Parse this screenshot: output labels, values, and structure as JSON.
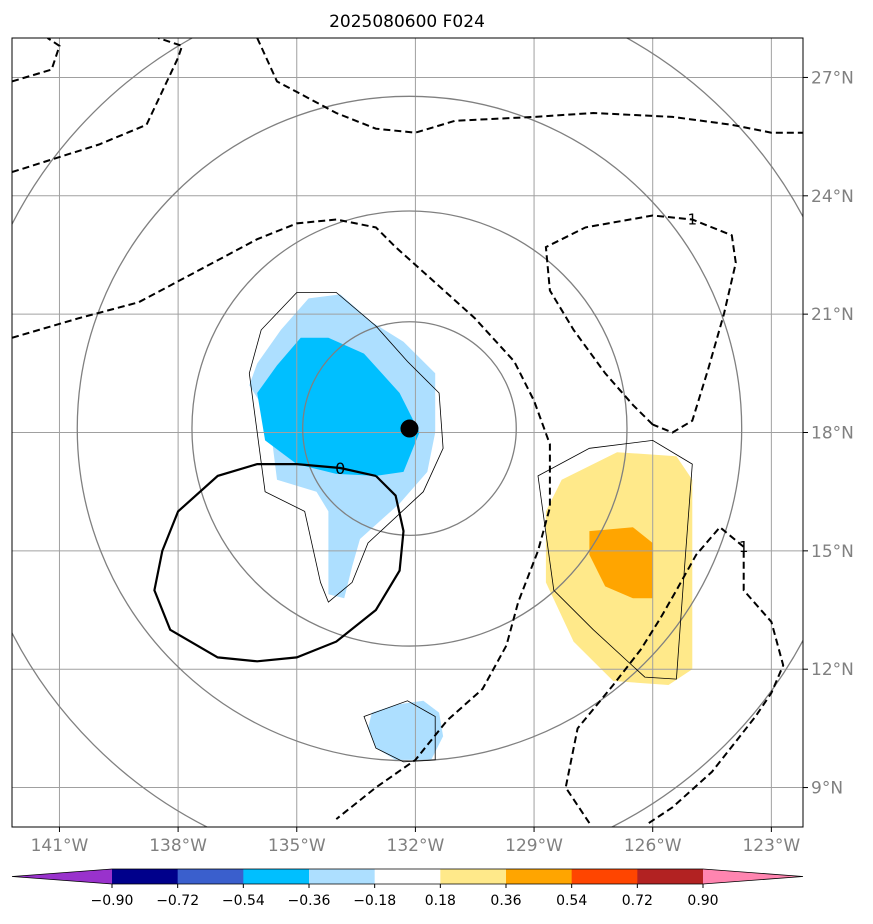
{
  "chart_data": {
    "type": "map",
    "title": "2025080600 F024",
    "projection": "PlateCarree",
    "lon_range": [
      -142.2,
      -122.2
    ],
    "lat_range": [
      8,
      28
    ],
    "lon_ticks": [
      -141,
      -138,
      -135,
      -132,
      -129,
      -126,
      -123
    ],
    "lon_tick_labels": [
      "141°W",
      "138°W",
      "135°W",
      "132°W",
      "129°W",
      "126°W",
      "123°W"
    ],
    "lat_ticks": [
      9,
      12,
      15,
      18,
      21,
      24,
      27
    ],
    "lat_tick_labels": [
      "9°N",
      "12°N",
      "15°N",
      "18°N",
      "21°N",
      "24°N",
      "27°N"
    ],
    "grid": true,
    "center_marker": {
      "lon": -132.15,
      "lat": 18.1,
      "color": "#000000"
    },
    "colorbar": {
      "orientation": "horizontal",
      "extend": "both",
      "levels": [
        -0.9,
        -0.72,
        -0.54,
        -0.36,
        -0.18,
        0.18,
        0.36,
        0.54,
        0.72,
        0.9
      ],
      "tick_labels": [
        "−0.90",
        "−0.72",
        "−0.54",
        "−0.36",
        "−0.18",
        "0.18",
        "0.36",
        "0.54",
        "0.72",
        "0.90"
      ],
      "colors": [
        "#9932CC",
        "#00008B",
        "#3A5FCD",
        "#00BFFF",
        "#ADDFFF",
        "#FFFFFF",
        "#FFE98A",
        "#FFA500",
        "#FF4500",
        "#B22222",
        "#FF85B0"
      ]
    },
    "shaded_regions": [
      {
        "level": "-0.36 to -0.18",
        "color": "#ADDFFF",
        "polygon": [
          [
            -136.0,
            19.75
          ],
          [
            -135.4,
            20.6
          ],
          [
            -134.7,
            21.4
          ],
          [
            -133.9,
            21.5
          ],
          [
            -133.1,
            20.8
          ],
          [
            -132.3,
            20.3
          ],
          [
            -131.5,
            19.5
          ],
          [
            -131.5,
            18.0
          ],
          [
            -131.7,
            17.0
          ],
          [
            -132.4,
            16.2
          ],
          [
            -133.4,
            15.3
          ],
          [
            -133.6,
            14.6
          ],
          [
            -133.8,
            13.8
          ],
          [
            -134.2,
            13.9
          ],
          [
            -134.2,
            16.0
          ],
          [
            -134.5,
            16.5
          ],
          [
            -135.5,
            16.8
          ],
          [
            -135.7,
            18.4
          ],
          [
            -136.2,
            19.2
          ],
          [
            -136.0,
            19.75
          ]
        ]
      },
      {
        "level": "-0.54 to -0.36",
        "color": "#00BFFF",
        "polygon": [
          [
            -134.9,
            20.4
          ],
          [
            -134.2,
            20.4
          ],
          [
            -133.3,
            20.0
          ],
          [
            -132.4,
            19.0
          ],
          [
            -131.9,
            18.0
          ],
          [
            -132.3,
            17.0
          ],
          [
            -133.0,
            16.9
          ],
          [
            -134.0,
            16.95
          ],
          [
            -135.0,
            17.2
          ],
          [
            -135.8,
            17.8
          ],
          [
            -136.0,
            19.0
          ],
          [
            -135.5,
            19.7
          ],
          [
            -134.9,
            20.4
          ]
        ]
      },
      {
        "level": "-0.36 to -0.18",
        "color": "#ADDFFF",
        "polygon": [
          [
            -133.2,
            10.5
          ],
          [
            -133.0,
            10.0
          ],
          [
            -132.5,
            9.7
          ],
          [
            -131.6,
            9.7
          ],
          [
            -131.3,
            10.3
          ],
          [
            -131.4,
            10.9
          ],
          [
            -131.8,
            11.2
          ],
          [
            -132.5,
            11.1
          ],
          [
            -133.1,
            10.9
          ],
          [
            -133.2,
            10.5
          ]
        ]
      },
      {
        "level": "0.18 to 0.36",
        "color": "#FFE98A",
        "polygon": [
          [
            -128.7,
            16.0
          ],
          [
            -128.3,
            16.8
          ],
          [
            -126.9,
            17.5
          ],
          [
            -125.4,
            17.4
          ],
          [
            -125.0,
            16.8
          ],
          [
            -125.0,
            15.0
          ],
          [
            -125.0,
            12.0
          ],
          [
            -125.6,
            11.6
          ],
          [
            -127.0,
            11.7
          ],
          [
            -128.0,
            12.7
          ],
          [
            -128.7,
            14.2
          ],
          [
            -128.7,
            16.0
          ]
        ]
      },
      {
        "level": "0.36 to 0.54",
        "color": "#FFA500",
        "polygon": [
          [
            -127.6,
            15.5
          ],
          [
            -126.5,
            15.6
          ],
          [
            -126.0,
            15.2
          ],
          [
            -126.0,
            13.8
          ],
          [
            -126.5,
            13.8
          ],
          [
            -127.2,
            14.1
          ],
          [
            -127.6,
            14.9
          ],
          [
            -127.6,
            15.5
          ]
        ]
      }
    ],
    "thin_contours": [
      [
        [
          -136.2,
          19.5
        ],
        [
          -135.9,
          20.6
        ],
        [
          -135.0,
          21.55
        ],
        [
          -134.0,
          21.55
        ],
        [
          -133.0,
          20.7
        ],
        [
          -132.2,
          19.8
        ],
        [
          -131.4,
          19.0
        ],
        [
          -131.3,
          17.6
        ],
        [
          -131.8,
          16.5
        ],
        [
          -133.2,
          15.2
        ],
        [
          -133.6,
          14.2
        ],
        [
          -134.2,
          13.7
        ],
        [
          -134.4,
          14.2
        ],
        [
          -134.8,
          16.0
        ],
        [
          -135.8,
          16.5
        ],
        [
          -136.2,
          19.5
        ]
      ],
      [
        [
          -133.3,
          10.8
        ],
        [
          -133.0,
          10.0
        ],
        [
          -132.3,
          9.65
        ],
        [
          -131.5,
          9.7
        ],
        [
          -131.5,
          10.8
        ],
        [
          -132.2,
          11.2
        ],
        [
          -133.3,
          10.8
        ]
      ]
    ],
    "thin_contours_2": [
      [
        [
          -128.9,
          16.9
        ],
        [
          -127.6,
          17.6
        ],
        [
          -126.0,
          17.8
        ],
        [
          -125.0,
          17.2
        ],
        [
          -125.2,
          14.5
        ],
        [
          -125.4,
          11.75
        ],
        [
          -126.2,
          11.8
        ],
        [
          -127.5,
          13.0
        ],
        [
          -128.5,
          14.0
        ],
        [
          -128.9,
          16.9
        ]
      ]
    ],
    "solid_contours": [
      {
        "label": "0",
        "points": [
          [
            -133.0,
            16.9
          ],
          [
            -133.9,
            17.1
          ],
          [
            -135.0,
            17.2
          ],
          [
            -136.0,
            17.2
          ],
          [
            -137.0,
            16.9
          ],
          [
            -138.0,
            16.0
          ],
          [
            -138.4,
            15.0
          ],
          [
            -138.6,
            14.0
          ],
          [
            -138.2,
            13.0
          ],
          [
            -137.0,
            12.3
          ],
          [
            -136.0,
            12.2
          ],
          [
            -135.0,
            12.3
          ],
          [
            -134.0,
            12.7
          ],
          [
            -133.0,
            13.5
          ],
          [
            -132.4,
            14.5
          ],
          [
            -132.3,
            15.5
          ],
          [
            -132.5,
            16.4
          ],
          [
            -133.0,
            16.9
          ]
        ]
      }
    ],
    "dashed_contours": [
      {
        "label": "",
        "points": [
          [
            -142.2,
            24.6
          ],
          [
            -140.0,
            25.3
          ],
          [
            -138.8,
            25.8
          ],
          [
            -138.0,
            27.5
          ],
          [
            -137.9,
            27.8
          ],
          [
            -138.5,
            28.0
          ]
        ]
      },
      {
        "label": "",
        "points": [
          [
            -142.2,
            26.9
          ],
          [
            -141.2,
            27.2
          ],
          [
            -141.0,
            27.8
          ],
          [
            -141.3,
            28.0
          ]
        ]
      },
      {
        "label": "",
        "points": [
          [
            -142.2,
            20.4
          ],
          [
            -140.5,
            20.9
          ],
          [
            -139.0,
            21.3
          ],
          [
            -137.5,
            22.1
          ],
          [
            -136.0,
            22.9
          ],
          [
            -135.0,
            23.3
          ],
          [
            -134.0,
            23.4
          ],
          [
            -133.0,
            23.2
          ],
          [
            -132.5,
            22.7
          ],
          [
            -131.5,
            21.8
          ],
          [
            -130.5,
            20.9
          ],
          [
            -129.5,
            19.8
          ],
          [
            -129.0,
            18.8
          ],
          [
            -128.6,
            17.7
          ],
          [
            -128.6,
            16.1
          ],
          [
            -128.9,
            15.0
          ],
          [
            -129.4,
            13.7
          ],
          [
            -129.7,
            12.6
          ],
          [
            -130.3,
            11.5
          ],
          [
            -131.2,
            10.7
          ],
          [
            -132.0,
            9.7
          ],
          [
            -133.0,
            9.0
          ],
          [
            -134.0,
            8.2
          ]
        ]
      },
      {
        "label": "",
        "points": [
          [
            -136.0,
            28.0
          ],
          [
            -135.5,
            26.9
          ],
          [
            -134.0,
            26.1
          ],
          [
            -133.0,
            25.7
          ],
          [
            -132.0,
            25.6
          ],
          [
            -131.0,
            25.9
          ],
          [
            -129.0,
            26.0
          ],
          [
            -127.5,
            26.1
          ],
          [
            -125.5,
            26.0
          ],
          [
            -124.0,
            25.8
          ],
          [
            -123.0,
            25.6
          ],
          [
            -122.2,
            25.6
          ]
        ]
      },
      {
        "label": "1",
        "points": [
          [
            -126.0,
            18.2
          ],
          [
            -126.5,
            18.7
          ],
          [
            -127.2,
            19.5
          ],
          [
            -128.0,
            20.6
          ],
          [
            -128.6,
            21.6
          ],
          [
            -128.7,
            22.7
          ],
          [
            -127.7,
            23.2
          ],
          [
            -126.0,
            23.5
          ],
          [
            -125.0,
            23.4
          ],
          [
            -124.0,
            23.0
          ],
          [
            -123.9,
            22.3
          ],
          [
            -124.2,
            21.0
          ],
          [
            -124.6,
            19.6
          ],
          [
            -125.0,
            18.3
          ],
          [
            -125.5,
            18.0
          ],
          [
            -126.0,
            18.2
          ]
        ]
      },
      {
        "label": "1",
        "points": [
          [
            -127.6,
            8.1
          ],
          [
            -128.2,
            9.0
          ],
          [
            -127.9,
            10.5
          ],
          [
            -127.0,
            11.6
          ],
          [
            -126.3,
            12.5
          ],
          [
            -125.8,
            13.3
          ],
          [
            -125.4,
            14.0
          ],
          [
            -124.9,
            14.9
          ],
          [
            -124.3,
            15.6
          ],
          [
            -123.7,
            15.1
          ],
          [
            -123.7,
            14.0
          ],
          [
            -123.0,
            13.2
          ],
          [
            -122.7,
            12.1
          ],
          [
            -123.0,
            11.4
          ],
          [
            -123.4,
            10.8
          ],
          [
            -124.5,
            9.4
          ],
          [
            -125.5,
            8.5
          ],
          [
            -126.1,
            8.1
          ]
        ]
      }
    ],
    "gray_circles": {
      "center": {
        "lon": -132.15,
        "lat": 18.1
      },
      "radii_deg": [
        2.7,
        5.5,
        8.4,
        11.3
      ],
      "color": "#808080"
    }
  }
}
